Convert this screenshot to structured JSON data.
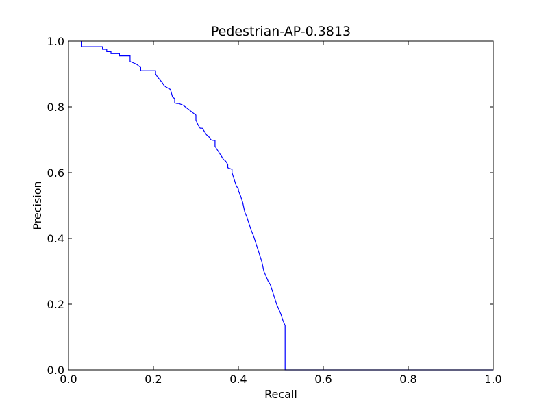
{
  "chart_data": {
    "type": "line",
    "title": "Pedestrian-AP-0.3813",
    "xlabel": "Recall",
    "ylabel": "Precision",
    "xlim": [
      0.0,
      1.0
    ],
    "ylim": [
      0.0,
      1.0
    ],
    "xticks": [
      "0.0",
      "0.2",
      "0.4",
      "0.6",
      "0.8",
      "1.0"
    ],
    "yticks": [
      "0.0",
      "0.2",
      "0.4",
      "0.6",
      "0.8",
      "1.0"
    ],
    "grid": false,
    "line_color": "#0000ff",
    "series": [
      {
        "x": [
          0.03,
          0.03,
          0.08,
          0.08,
          0.09,
          0.09,
          0.1,
          0.1,
          0.12,
          0.12,
          0.145,
          0.145,
          0.16,
          0.17,
          0.17,
          0.205,
          0.205,
          0.21,
          0.22,
          0.225,
          0.23,
          0.24,
          0.245,
          0.25,
          0.25,
          0.255,
          0.26,
          0.27,
          0.275,
          0.28,
          0.29,
          0.3,
          0.3,
          0.305,
          0.31,
          0.315,
          0.32,
          0.325,
          0.33,
          0.335,
          0.34,
          0.345,
          0.345,
          0.35,
          0.355,
          0.36,
          0.365,
          0.37,
          0.375,
          0.375,
          0.385,
          0.385,
          0.39,
          0.395,
          0.4,
          0.4,
          0.405,
          0.41,
          0.415,
          0.42,
          0.425,
          0.43,
          0.435,
          0.44,
          0.445,
          0.45,
          0.455,
          0.46,
          0.465,
          0.47,
          0.475,
          0.48,
          0.485,
          0.49,
          0.495,
          0.5,
          0.505,
          0.51,
          0.51,
          1.0
        ],
        "y": [
          1.0,
          0.983,
          0.983,
          0.975,
          0.975,
          0.968,
          0.968,
          0.962,
          0.962,
          0.955,
          0.955,
          0.938,
          0.93,
          0.92,
          0.91,
          0.91,
          0.9,
          0.89,
          0.875,
          0.865,
          0.86,
          0.853,
          0.83,
          0.825,
          0.812,
          0.81,
          0.81,
          0.805,
          0.8,
          0.795,
          0.785,
          0.775,
          0.76,
          0.745,
          0.735,
          0.735,
          0.725,
          0.715,
          0.71,
          0.7,
          0.698,
          0.698,
          0.68,
          0.67,
          0.66,
          0.65,
          0.64,
          0.635,
          0.625,
          0.615,
          0.61,
          0.6,
          0.58,
          0.56,
          0.55,
          0.545,
          0.53,
          0.51,
          0.48,
          0.465,
          0.445,
          0.425,
          0.41,
          0.39,
          0.37,
          0.35,
          0.33,
          0.3,
          0.285,
          0.27,
          0.26,
          0.24,
          0.22,
          0.2,
          0.185,
          0.17,
          0.15,
          0.135,
          0.0,
          0.0
        ]
      }
    ]
  }
}
